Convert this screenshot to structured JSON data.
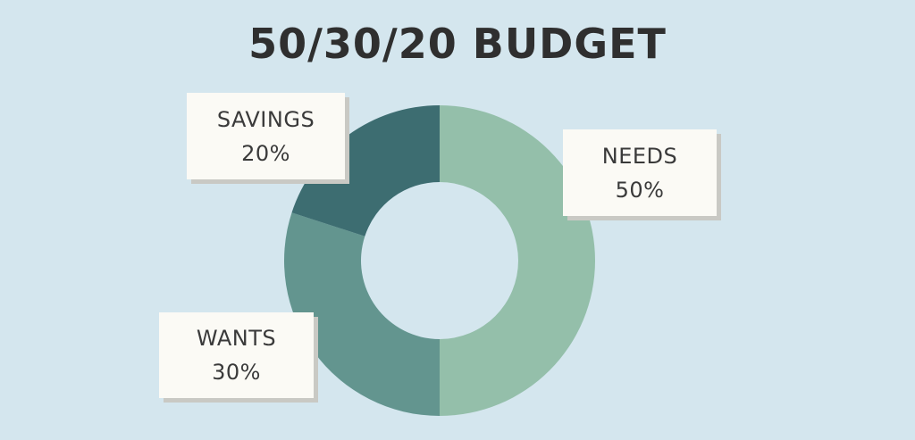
{
  "chart_data": {
    "type": "pie",
    "title": "50/30/20 BUDGET",
    "categories": [
      "NEEDS",
      "WANTS",
      "SAVINGS"
    ],
    "values": [
      50,
      30,
      20
    ],
    "value_labels": [
      "50%",
      "30%",
      "20%"
    ],
    "colors": [
      "#94bfaa",
      "#63958f",
      "#3d6d71"
    ],
    "donut": true
  }
}
